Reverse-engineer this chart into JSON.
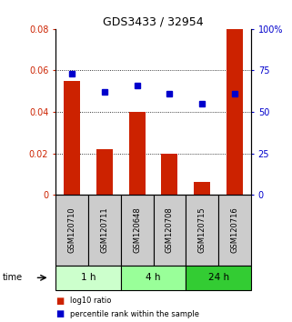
{
  "title": "GDS3433 / 32954",
  "samples": [
    "GSM120710",
    "GSM120711",
    "GSM120648",
    "GSM120708",
    "GSM120715",
    "GSM120716"
  ],
  "log10_ratio": [
    0.055,
    0.022,
    0.04,
    0.02,
    0.006,
    0.08
  ],
  "percentile_rank": [
    73,
    62,
    66,
    61,
    55,
    61
  ],
  "bar_color": "#cc2200",
  "dot_color": "#0000cc",
  "ylim_left": [
    0,
    0.08
  ],
  "ylim_right": [
    0,
    100
  ],
  "yticks_left": [
    0,
    0.02,
    0.04,
    0.06,
    0.08
  ],
  "yticks_right": [
    0,
    25,
    50,
    75,
    100
  ],
  "ytick_labels_left": [
    "0",
    "0.02",
    "0.04",
    "0.06",
    "0.08"
  ],
  "ytick_labels_right": [
    "0",
    "25",
    "50",
    "75",
    "100%"
  ],
  "groups": [
    {
      "label": "1 h",
      "start": 0,
      "end": 1,
      "color": "#ccffcc"
    },
    {
      "label": "4 h",
      "start": 2,
      "end": 3,
      "color": "#99ff99"
    },
    {
      "label": "24 h",
      "start": 4,
      "end": 5,
      "color": "#33cc33"
    }
  ],
  "time_label": "time",
  "legend": [
    {
      "label": "log10 ratio",
      "color": "#cc2200"
    },
    {
      "label": "percentile rank within the sample",
      "color": "#0000cc"
    }
  ],
  "sample_box_color": "#cccccc",
  "left_axis_color": "#cc2200",
  "right_axis_color": "#0000cc"
}
